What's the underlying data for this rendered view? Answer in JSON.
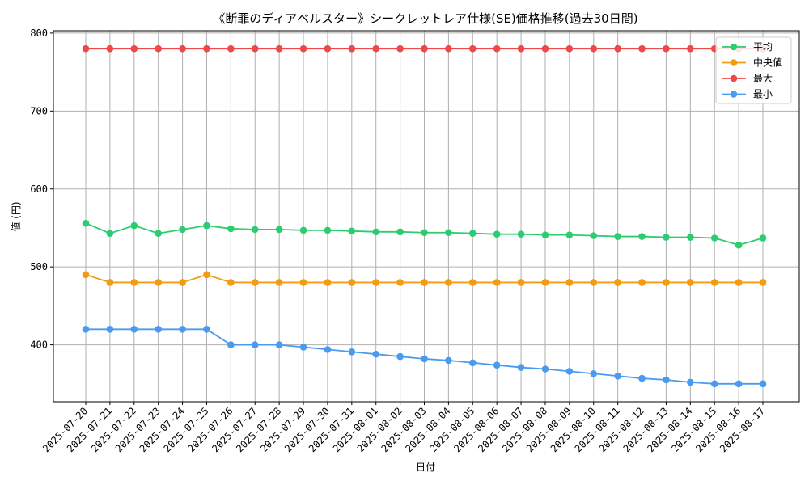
{
  "chart_data": {
    "type": "line",
    "title": "《断罪のディアベルスター》シークレットレア仕様(SE)価格推移(過去30日間)",
    "xlabel": "日付",
    "ylabel": "値 (円)",
    "ylim": [
      327,
      803
    ],
    "yticks": [
      400,
      500,
      600,
      700,
      800
    ],
    "grid": true,
    "legend_position": "top-right",
    "categories": [
      "2025-07-20",
      "2025-07-21",
      "2025-07-22",
      "2025-07-23",
      "2025-07-24",
      "2025-07-25",
      "2025-07-26",
      "2025-07-27",
      "2025-07-28",
      "2025-07-29",
      "2025-07-30",
      "2025-07-31",
      "2025-08-01",
      "2025-08-02",
      "2025-08-03",
      "2025-08-04",
      "2025-08-05",
      "2025-08-06",
      "2025-08-07",
      "2025-08-08",
      "2025-08-09",
      "2025-08-10",
      "2025-08-11",
      "2025-08-12",
      "2025-08-13",
      "2025-08-14",
      "2025-08-15",
      "2025-08-16",
      "2025-08-17"
    ],
    "series": [
      {
        "name": "平均",
        "color": "#2ecc71",
        "values": [
          556,
          543,
          553,
          543,
          548,
          553,
          549,
          548,
          548,
          547,
          547,
          546,
          545,
          545,
          544,
          544,
          543,
          542,
          542,
          541,
          541,
          540,
          539,
          539,
          538,
          538,
          537,
          528,
          537
        ]
      },
      {
        "name": "中央値",
        "color": "#f39c12",
        "values": [
          490,
          480,
          480,
          480,
          480,
          490,
          480,
          480,
          480,
          480,
          480,
          480,
          480,
          480,
          480,
          480,
          480,
          480,
          480,
          480,
          480,
          480,
          480,
          480,
          480,
          480,
          480,
          480,
          480
        ]
      },
      {
        "name": "最大",
        "color": "#f04848",
        "values": [
          780,
          780,
          780,
          780,
          780,
          780,
          780,
          780,
          780,
          780,
          780,
          780,
          780,
          780,
          780,
          780,
          780,
          780,
          780,
          780,
          780,
          780,
          780,
          780,
          780,
          780,
          780,
          780,
          780
        ]
      },
      {
        "name": "最小",
        "color": "#4a9bf0",
        "values": [
          420,
          420,
          420,
          420,
          420,
          420,
          400,
          400,
          400,
          397,
          394,
          391,
          388,
          385,
          382,
          380,
          377,
          374,
          371,
          369,
          366,
          363,
          360,
          357,
          355,
          352,
          350,
          350,
          350
        ]
      }
    ]
  }
}
